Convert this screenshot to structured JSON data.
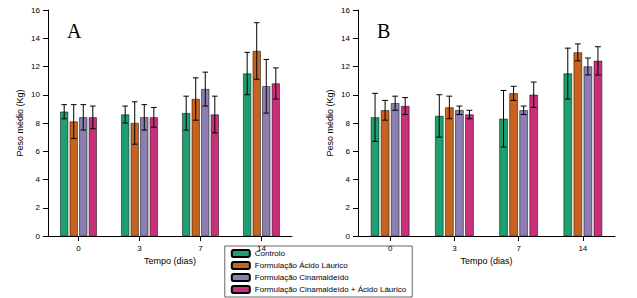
{
  "chart_data": [
    {
      "type": "bar",
      "title": "A",
      "x_label": "Tempo (dias)",
      "y_label": "Peso médio (Kg)",
      "categories": [
        "0",
        "3",
        "7",
        "14"
      ],
      "series": [
        {
          "name": "Controlo",
          "color": "#1f9e6e",
          "values": [
            8.8,
            8.6,
            8.7,
            11.5
          ],
          "errors": [
            0.5,
            0.6,
            1.2,
            1.5
          ]
        },
        {
          "name": "Formulação Ácido Láurico",
          "color": "#c8631f",
          "values": [
            8.1,
            8.0,
            9.7,
            13.1
          ],
          "errors": [
            1.2,
            1.5,
            1.5,
            2.0
          ]
        },
        {
          "name": "Formulação Cinamaldeído",
          "color": "#8a7fb0",
          "values": [
            8.4,
            8.4,
            10.4,
            10.6
          ],
          "errors": [
            0.9,
            0.9,
            1.2,
            1.9
          ]
        },
        {
          "name": "Formulação Cinamaldeído + Ácido Láurico",
          "color": "#c9307a",
          "values": [
            8.4,
            8.4,
            8.6,
            10.8
          ],
          "errors": [
            0.8,
            0.7,
            1.3,
            1.1
          ]
        }
      ],
      "ylim": [
        0,
        16
      ],
      "yticks": [
        0,
        2,
        4,
        6,
        8,
        10,
        12,
        14,
        16
      ],
      "grid": false,
      "legend": "bottom"
    },
    {
      "type": "bar",
      "title": "B",
      "x_label": "Tempo (dias)",
      "y_label": "Peso médio (Kg)",
      "categories": [
        "0",
        "3",
        "7",
        "14"
      ],
      "series": [
        {
          "name": "Controlo",
          "color": "#1f9e6e",
          "values": [
            8.4,
            8.5,
            8.3,
            11.5
          ],
          "errors": [
            1.7,
            1.5,
            2.0,
            1.8
          ]
        },
        {
          "name": "Formulação Ácido Láurico",
          "color": "#c8631f",
          "values": [
            8.9,
            9.1,
            10.1,
            13.0
          ],
          "errors": [
            0.7,
            0.8,
            0.5,
            0.6
          ]
        },
        {
          "name": "Formulação Cinamaldeído",
          "color": "#8a7fb0",
          "values": [
            9.4,
            8.9,
            8.9,
            12.0
          ],
          "errors": [
            0.5,
            0.3,
            0.3,
            0.6
          ]
        },
        {
          "name": "Formulação Cinamaldeído + Ácido Láurico",
          "color": "#c9307a",
          "values": [
            9.2,
            8.6,
            10.0,
            12.4
          ],
          "errors": [
            0.6,
            0.3,
            0.9,
            1.0
          ]
        }
      ],
      "ylim": [
        0,
        16
      ],
      "yticks": [
        0,
        2,
        4,
        6,
        8,
        10,
        12,
        14,
        16
      ],
      "grid": false,
      "legend": "bottom"
    }
  ]
}
